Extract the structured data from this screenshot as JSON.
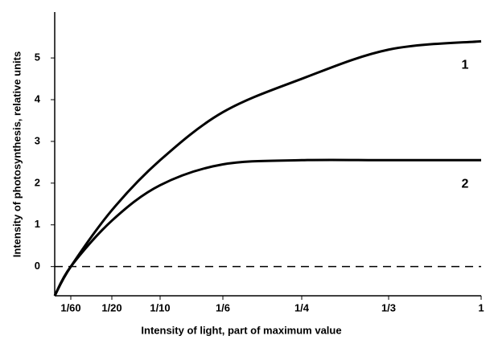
{
  "chart_data": {
    "type": "line",
    "x_label": "Intensity of light, part of maximum value",
    "y_label": "Intensity of photosynthesis, relative units",
    "x": [
      0,
      0.01667,
      0.05,
      0.1,
      0.16667,
      0.25,
      0.33333,
      1
    ],
    "series": [
      {
        "name": "1",
        "color": "#000000",
        "values": [
          -0.7,
          0,
          1.35,
          2.55,
          3.7,
          4.5,
          5.2,
          5.4
        ]
      },
      {
        "name": "2",
        "color": "#000000",
        "values": [
          -0.7,
          0,
          1.1,
          1.95,
          2.45,
          2.55,
          2.55,
          2.55
        ]
      }
    ],
    "xlim": [
      0,
      1
    ],
    "xticks": [
      {
        "value": 0.01667,
        "label": "1/60"
      },
      {
        "value": 0.05,
        "label": "1/20"
      },
      {
        "value": 0.1,
        "label": "1/10"
      },
      {
        "value": 0.16667,
        "label": "1/6"
      },
      {
        "value": 0.25,
        "label": "1/4"
      },
      {
        "value": 0.33333,
        "label": "1/3"
      },
      1
    ],
    "ylim": [
      -0.7,
      6.1
    ],
    "yticks": [
      0,
      1,
      2,
      3,
      4,
      5
    ],
    "hline": 0,
    "hline_dashed": true
  }
}
